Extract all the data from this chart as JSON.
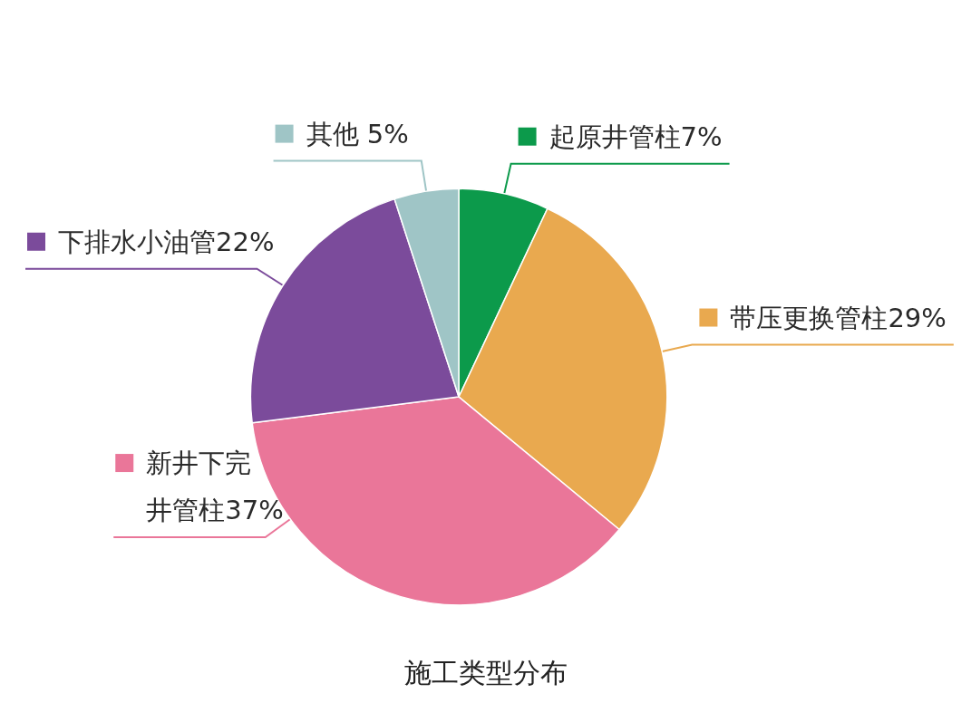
{
  "chart_data": {
    "type": "pie",
    "title": "施工类型分布",
    "categories": [
      "起原井管柱",
      "带压更换管柱",
      "新井下完井管柱",
      "下排水小油管",
      "其他"
    ],
    "values": [
      7,
      29,
      37,
      22,
      5
    ],
    "colors": [
      "#0c9a4b",
      "#e9a94f",
      "#ea7699",
      "#7b4b9b",
      "#9fc5c6"
    ],
    "value_labels": [
      "7%",
      "29%",
      "37%",
      "22%",
      " 5%"
    ],
    "legend": "top right"
  }
}
